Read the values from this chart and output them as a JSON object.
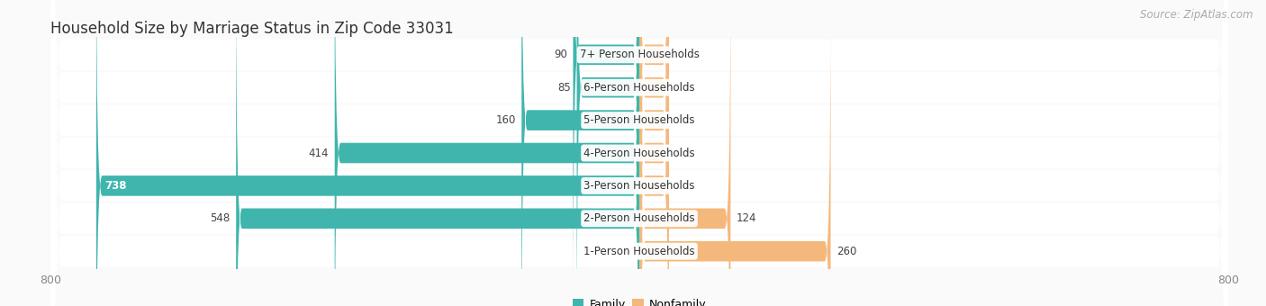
{
  "title": "Household Size by Marriage Status in Zip Code 33031",
  "source": "Source: ZipAtlas.com",
  "categories": [
    "7+ Person Households",
    "6-Person Households",
    "5-Person Households",
    "4-Person Households",
    "3-Person Households",
    "2-Person Households",
    "1-Person Households"
  ],
  "family_values": [
    90,
    85,
    160,
    414,
    738,
    548,
    0
  ],
  "nonfamily_values": [
    0,
    0,
    0,
    0,
    0,
    124,
    260
  ],
  "nonfamily_stub": 40,
  "family_color": "#40b5ad",
  "nonfamily_color": "#f5b87c",
  "xlim_left": -800,
  "xlim_right": 800,
  "bar_height": 0.62,
  "row_bg_color": "#f0f0f0",
  "chart_bg_color": "#fafafa",
  "title_fontsize": 12,
  "source_fontsize": 8.5,
  "label_fontsize": 8.5,
  "tick_fontsize": 9,
  "legend_fontsize": 9
}
